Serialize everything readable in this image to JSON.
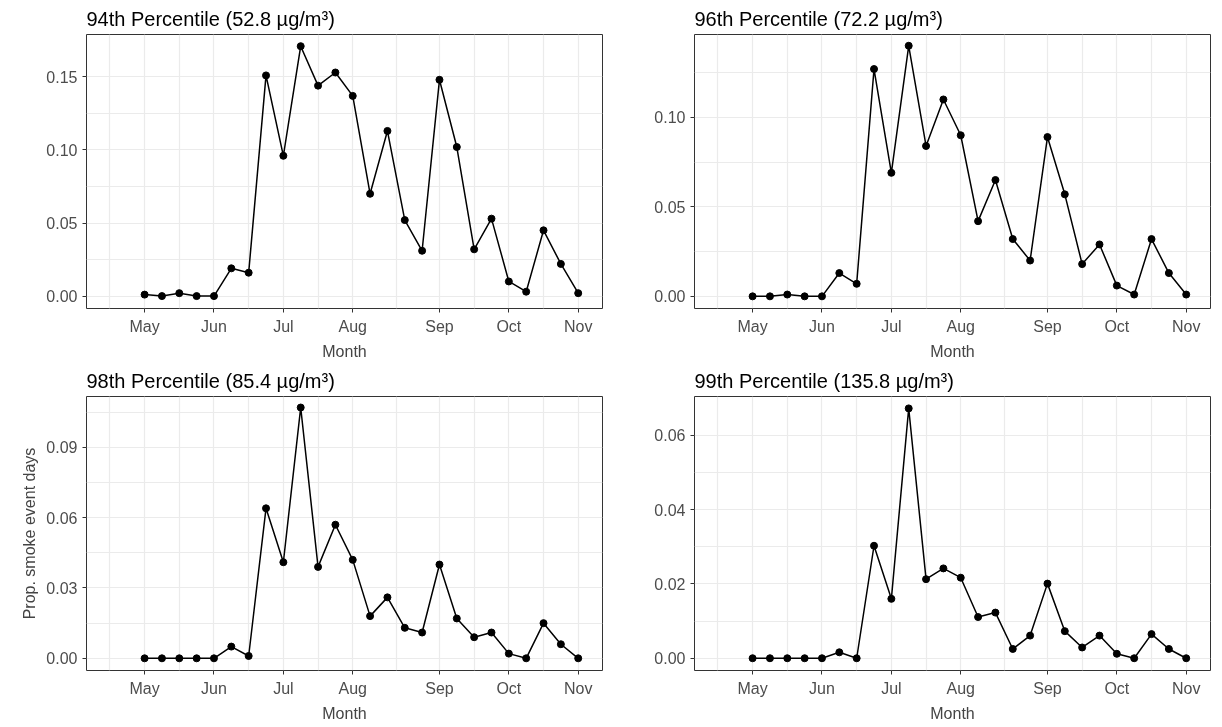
{
  "chart_data": [
    {
      "type": "line",
      "title": "94th Percentile (52.8 µg/m³)",
      "xlabel": "Month",
      "marker": "circle",
      "line_style": "solid",
      "grid": true,
      "categories": [
        "May",
        null,
        null,
        null,
        "Jun",
        null,
        null,
        null,
        "Jul",
        null,
        null,
        null,
        "Aug",
        null,
        null,
        null,
        null,
        "Sep",
        null,
        null,
        null,
        "Oct",
        null,
        null,
        null,
        "Nov"
      ],
      "ylim": [
        -0.0085,
        0.179
      ],
      "yticks": [
        {
          "value": 0,
          "label": "0.00"
        },
        {
          "value": 0.025,
          "label": null
        },
        {
          "value": 0.05,
          "label": "0.05"
        },
        {
          "value": 0.075,
          "label": null
        },
        {
          "value": 0.1,
          "label": "0.10"
        },
        {
          "value": 0.125,
          "label": null
        },
        {
          "value": 0.15,
          "label": "0.15"
        }
      ],
      "series": [
        {
          "color": "#000000",
          "values": [
            0.001,
            0,
            0.002,
            0,
            0,
            0.019,
            0.016,
            0.151,
            0.096,
            0.171,
            0.144,
            0.153,
            0.137,
            0.07,
            0.113,
            0.052,
            0.031,
            0.148,
            0.102,
            0.032,
            0.053,
            0.01,
            0.003,
            0.045,
            0.022,
            0.002
          ]
        }
      ]
    },
    {
      "type": "line",
      "title": "96th Percentile (72.2 µg/m³)",
      "xlabel": "Month",
      "marker": "circle",
      "line_style": "solid",
      "grid": true,
      "categories": [
        "May",
        null,
        null,
        null,
        "Jun",
        null,
        null,
        null,
        "Jul",
        null,
        null,
        null,
        "Aug",
        null,
        null,
        null,
        null,
        "Sep",
        null,
        null,
        null,
        "Oct",
        null,
        null,
        null,
        "Nov"
      ],
      "ylim": [
        -0.0068,
        0.1463
      ],
      "yticks": [
        {
          "value": 0,
          "label": "0.00"
        },
        {
          "value": 0.025,
          "label": null
        },
        {
          "value": 0.05,
          "label": "0.05"
        },
        {
          "value": 0.075,
          "label": null
        },
        {
          "value": 0.1,
          "label": "0.10"
        },
        {
          "value": 0.125,
          "label": null
        }
      ],
      "series": [
        {
          "color": "#000000",
          "values": [
            0,
            0,
            0.001,
            0,
            0,
            0.013,
            0.007,
            0.127,
            0.069,
            0.14,
            0.084,
            0.11,
            0.09,
            0.042,
            0.065,
            0.032,
            0.02,
            0.089,
            0.057,
            0.018,
            0.029,
            0.006,
            0.001,
            0.032,
            0.013,
            0.001
          ]
        }
      ]
    },
    {
      "type": "line",
      "title": "98th Percentile (85.4 µg/m³)",
      "xlabel": "Month",
      "ylabel": "Prop. smoke event days",
      "marker": "circle",
      "line_style": "solid",
      "grid": true,
      "categories": [
        "May",
        null,
        null,
        null,
        "Jun",
        null,
        null,
        null,
        "Jul",
        null,
        null,
        null,
        "Aug",
        null,
        null,
        null,
        null,
        "Sep",
        null,
        null,
        null,
        "Oct",
        null,
        null,
        null,
        "Nov"
      ],
      "ylim": [
        -0.0052,
        0.1117
      ],
      "yticks": [
        {
          "value": 0,
          "label": "0.00"
        },
        {
          "value": 0.015,
          "label": null
        },
        {
          "value": 0.03,
          "label": "0.03"
        },
        {
          "value": 0.045,
          "label": null
        },
        {
          "value": 0.06,
          "label": "0.06"
        },
        {
          "value": 0.075,
          "label": null
        },
        {
          "value": 0.09,
          "label": "0.09"
        },
        {
          "value": 0.105,
          "label": null
        }
      ],
      "series": [
        {
          "color": "#000000",
          "values": [
            0,
            0,
            0,
            0,
            0,
            0.005,
            0.001,
            0.064,
            0.041,
            0.107,
            0.039,
            0.057,
            0.042,
            0.018,
            0.026,
            0.013,
            0.011,
            0.04,
            0.017,
            0.009,
            0.011,
            0.002,
            0,
            0.015,
            0.006,
            0
          ]
        }
      ]
    },
    {
      "type": "line",
      "title": "99th Percentile (135.8 µg/m³)",
      "xlabel": "Month",
      "marker": "circle",
      "line_style": "solid",
      "grid": true,
      "categories": [
        "May",
        null,
        null,
        null,
        "Jun",
        null,
        null,
        null,
        "Jul",
        null,
        null,
        null,
        "Aug",
        null,
        null,
        null,
        null,
        "Sep",
        null,
        null,
        null,
        "Oct",
        null,
        null,
        null,
        "Nov"
      ],
      "ylim": [
        -0.0033,
        0.0705
      ],
      "yticks": [
        {
          "value": 0,
          "label": "0.00"
        },
        {
          "value": 0.01,
          "label": null
        },
        {
          "value": 0.02,
          "label": "0.02"
        },
        {
          "value": 0.03,
          "label": null
        },
        {
          "value": 0.04,
          "label": "0.04"
        },
        {
          "value": 0.05,
          "label": null
        },
        {
          "value": 0.06,
          "label": "0.06"
        }
      ],
      "series": [
        {
          "color": "#000000",
          "values": [
            0,
            0,
            0,
            0,
            0,
            0.0016,
            0,
            0.0303,
            0.016,
            0.0673,
            0.0213,
            0.0242,
            0.0217,
            0.0111,
            0.0123,
            0.0025,
            0.0061,
            0.0201,
            0.0073,
            0.0029,
            0.0061,
            0.0012,
            0,
            0.0065,
            0.0025,
            0
          ]
        }
      ]
    }
  ]
}
